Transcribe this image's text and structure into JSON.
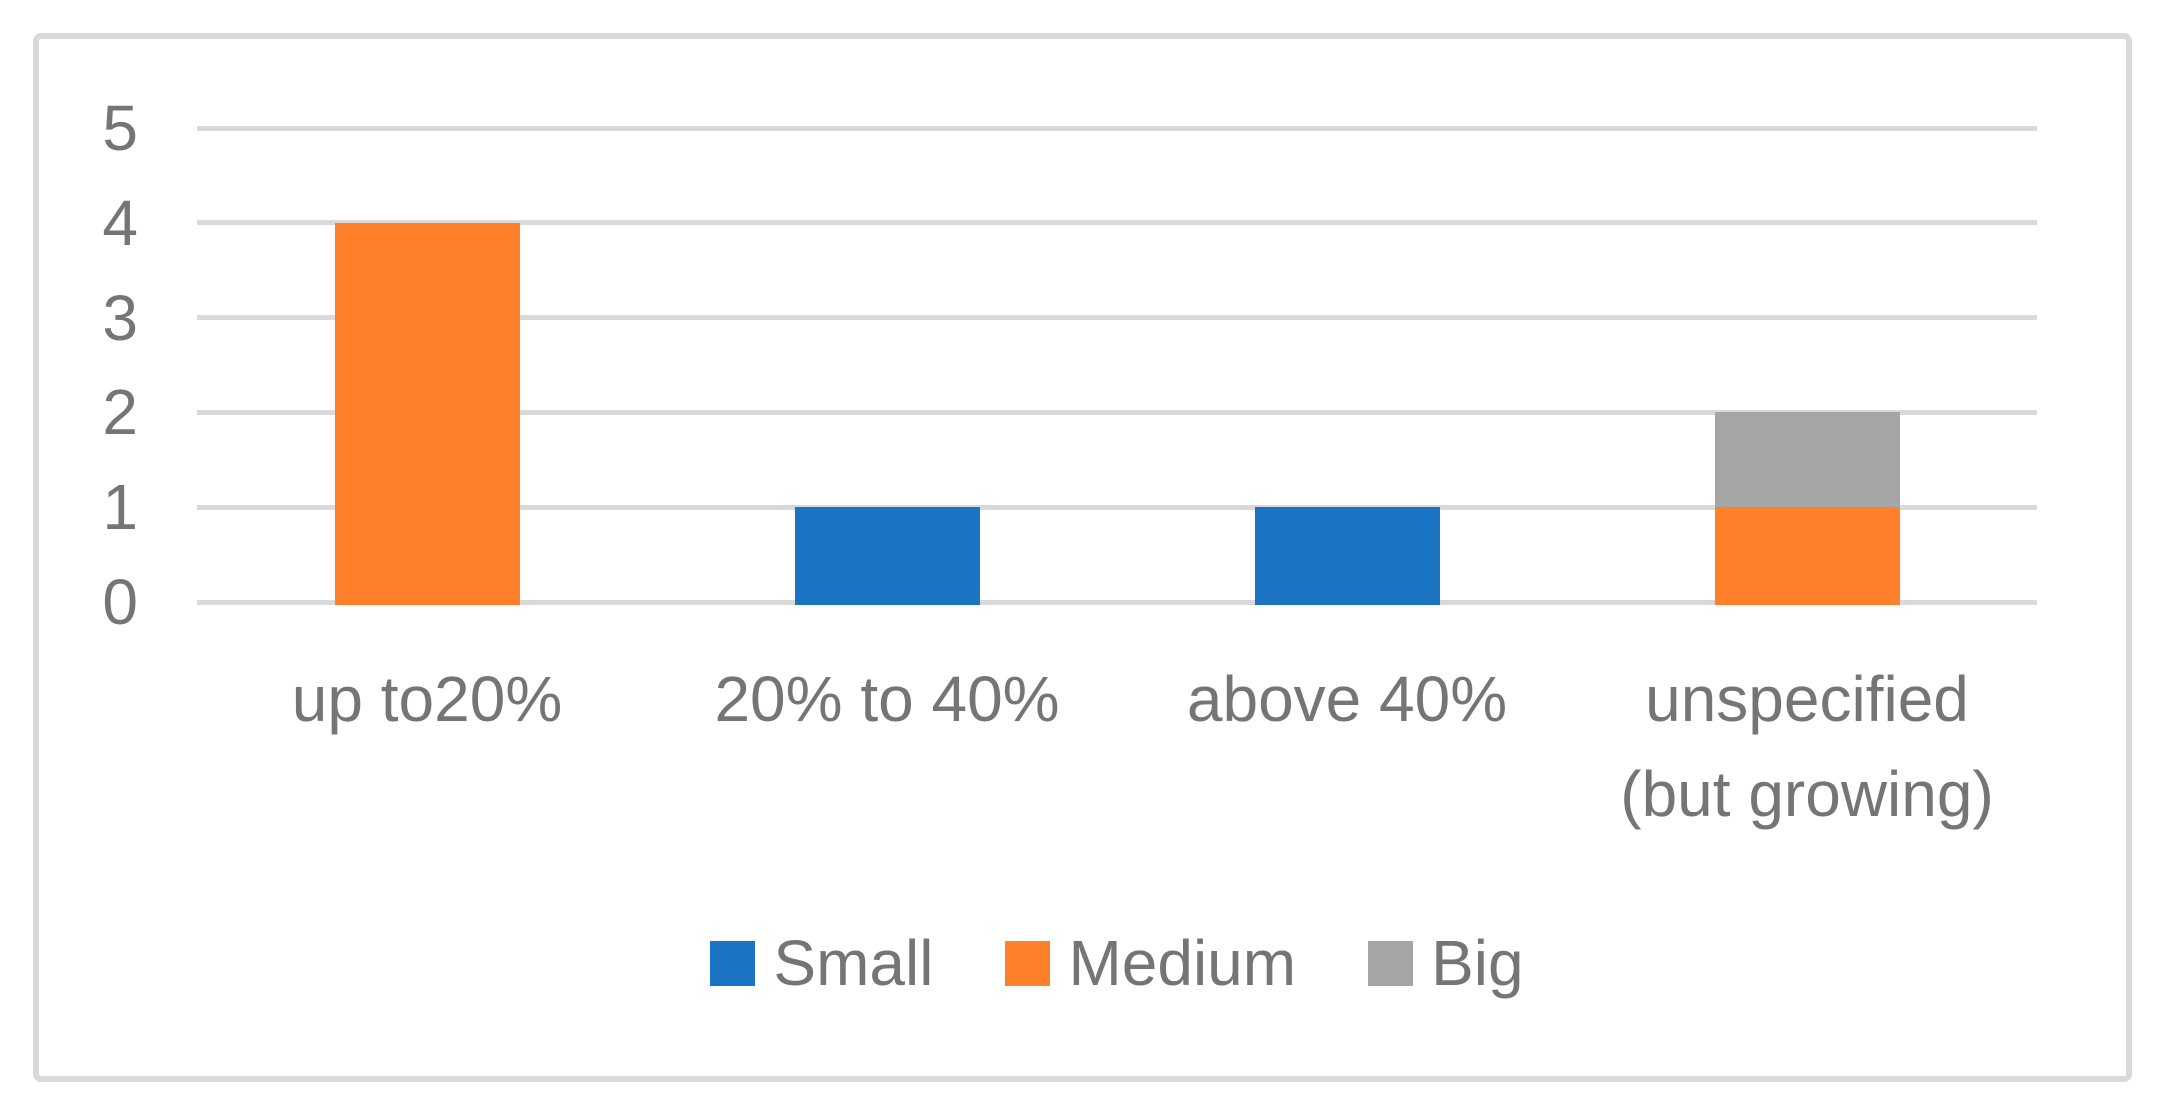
{
  "chart_data": {
    "type": "bar",
    "stacked": true,
    "title": "",
    "xlabel": "",
    "ylabel": "",
    "categories": [
      "up to20%",
      "20% to 40%",
      "above 40%",
      "unspecified\n(but growing)"
    ],
    "series": [
      {
        "name": "Small",
        "color": "#1B73C4",
        "values": [
          0,
          1,
          1,
          0
        ]
      },
      {
        "name": "Medium",
        "color": "#FF7F2A",
        "values": [
          4,
          0,
          0,
          1
        ]
      },
      {
        "name": "Big",
        "color": "#A5A5A5",
        "values": [
          0,
          0,
          0,
          1
        ]
      }
    ],
    "ylim": [
      0,
      5
    ],
    "yticks": [
      0,
      1,
      2,
      3,
      4,
      5
    ],
    "grid": true,
    "legend_position": "bottom",
    "legend_entries": [
      "Small",
      "Medium",
      "Big"
    ]
  },
  "style_colors": {
    "gridline": "#D9D9D9",
    "frame_border": "#D9D9D9",
    "axis_text": "#757575",
    "background": "#FFFFFF"
  }
}
